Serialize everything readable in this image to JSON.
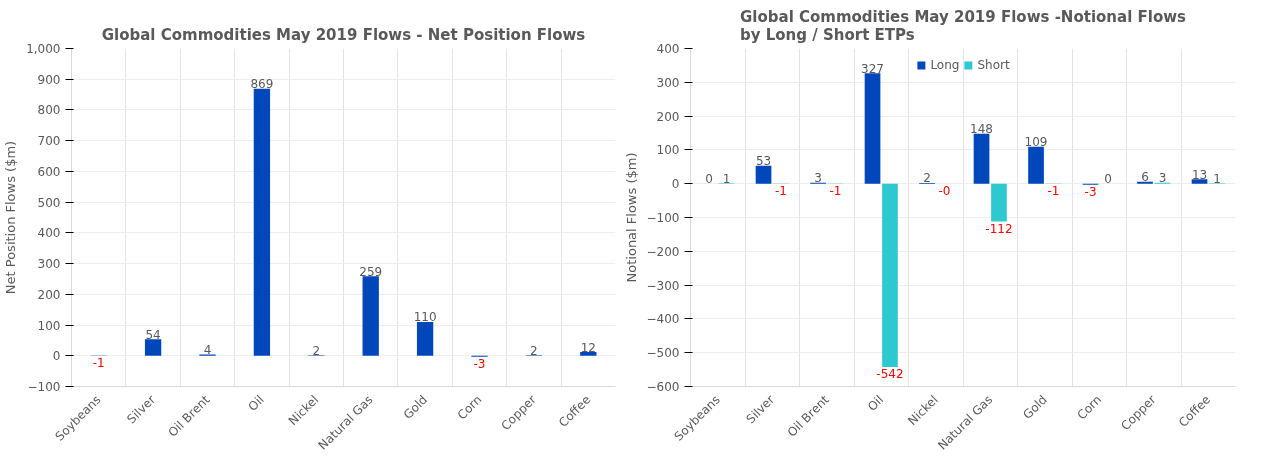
{
  "chart_data": [
    {
      "type": "bar",
      "title": "Global Commodities May 2019 Flows - Net Position Flows",
      "ylabel": "Net Position Flows ($m)",
      "categories": [
        "Soybeans",
        "Silver",
        "Oil Brent",
        "Oil",
        "Nickel",
        "Natural Gas",
        "Gold",
        "Corn",
        "Copper",
        "Coffee"
      ],
      "series": [
        {
          "color": "#0047bb",
          "values": [
            -1,
            54,
            4,
            869,
            2,
            259,
            110,
            -3,
            2,
            12
          ]
        }
      ],
      "ylim": [
        -100,
        1000
      ],
      "yticks": [
        -100,
        0,
        100,
        200,
        300,
        400,
        500,
        600,
        700,
        800,
        900,
        {
          "value": 1000,
          "label": "1,000"
        }
      ],
      "grid": true,
      "data_labels": true,
      "legend": false
    },
    {
      "type": "bar",
      "title": "Global Commodities May 2019 Flows -Notional Flows\nby Long / Short ETPs",
      "ylabel": "Notional Flows ($m)",
      "categories": [
        "Soybeans",
        "Silver",
        "Oil Brent",
        "Oil",
        "Nickel",
        "Natural Gas",
        "Gold",
        "Corn",
        "Copper",
        "Coffee"
      ],
      "series": [
        {
          "name": "Long",
          "color": "#0047bb",
          "values": [
            0,
            53,
            3,
            327,
            2,
            148,
            109,
            -3,
            6,
            13
          ],
          "value_labels": [
            "0",
            "53",
            "3",
            "327",
            "2",
            "148",
            "109",
            "-3",
            "6",
            "13"
          ]
        },
        {
          "name": "Short",
          "color": "#2ec9d0",
          "values": [
            1,
            -1,
            -1,
            -542,
            0,
            -112,
            -1,
            0,
            3,
            1
          ],
          "value_labels": [
            "1",
            "-1",
            "-1",
            "-542",
            "-0",
            "-112",
            "-1",
            "0",
            "3",
            "1"
          ]
        }
      ],
      "ylim": [
        -600,
        400
      ],
      "yticks": [
        -600,
        -500,
        -400,
        -300,
        -200,
        -100,
        0,
        100,
        200,
        300,
        400
      ],
      "grid": true,
      "legend": "top"
    }
  ]
}
